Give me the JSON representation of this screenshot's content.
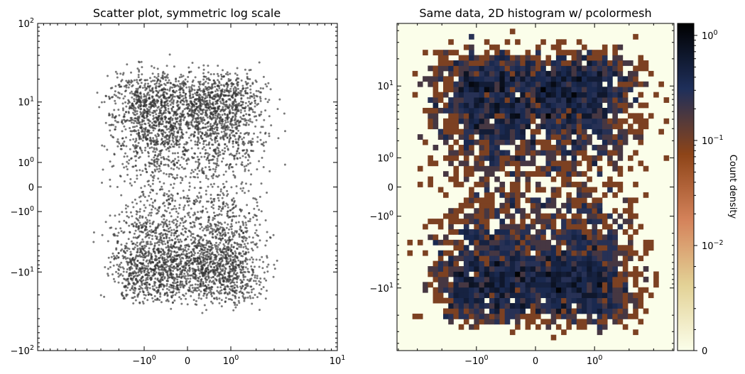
{
  "chart_data": [
    {
      "type": "scatter",
      "title": "Scatter plot, symmetric log scale",
      "xscale": "symlog",
      "yscale": "symlog",
      "linthresh": 1,
      "xlim": [
        -10,
        10
      ],
      "ylim": [
        -100,
        100
      ],
      "xticks": [
        {
          "base": "−10",
          "exp": "0"
        },
        {
          "base": "0",
          "exp": ""
        },
        {
          "base": "10",
          "exp": "0"
        },
        {
          "base": "10",
          "exp": "1"
        }
      ],
      "yticks": [
        {
          "base": "10",
          "exp": "2"
        },
        {
          "base": "10",
          "exp": "1"
        },
        {
          "base": "10",
          "exp": "0"
        },
        {
          "base": "0",
          "exp": ""
        },
        {
          "base": "−10",
          "exp": "0"
        },
        {
          "base": "−10",
          "exp": "1"
        },
        {
          "base": "−10",
          "exp": "2"
        }
      ],
      "point_count": 5000,
      "distribution": {
        "x": "normal, sd 1",
        "y": "normal, sd 10"
      },
      "point_color": "#333333",
      "grid": false
    },
    {
      "type": "heatmap",
      "title": "Same data, 2D histogram w/ pcolormesh",
      "xscale": "symlog",
      "yscale": "symlog",
      "xticks": [
        {
          "base": "−10",
          "exp": "0"
        },
        {
          "base": "0",
          "exp": ""
        },
        {
          "base": "10",
          "exp": "0"
        }
      ],
      "yticks": [
        {
          "base": "10",
          "exp": "1"
        },
        {
          "base": "10",
          "exp": "0"
        },
        {
          "base": "0",
          "exp": ""
        },
        {
          "base": "−10",
          "exp": "0"
        },
        {
          "base": "−10",
          "exp": "1"
        }
      ],
      "colormap": [
        "#fbfeea",
        "#e3d296",
        "#d4825a",
        "#8d4418",
        "#1e2f5a",
        "#000000"
      ],
      "colorbar": {
        "label": "Count density",
        "scale": "symlog",
        "ticks": [
          {
            "base": "0",
            "exp": ""
          },
          {
            "base": "10",
            "exp": "−2"
          },
          {
            "base": "10",
            "exp": "−1"
          },
          {
            "base": "10",
            "exp": "0"
          }
        ],
        "max": 1.3
      }
    }
  ]
}
